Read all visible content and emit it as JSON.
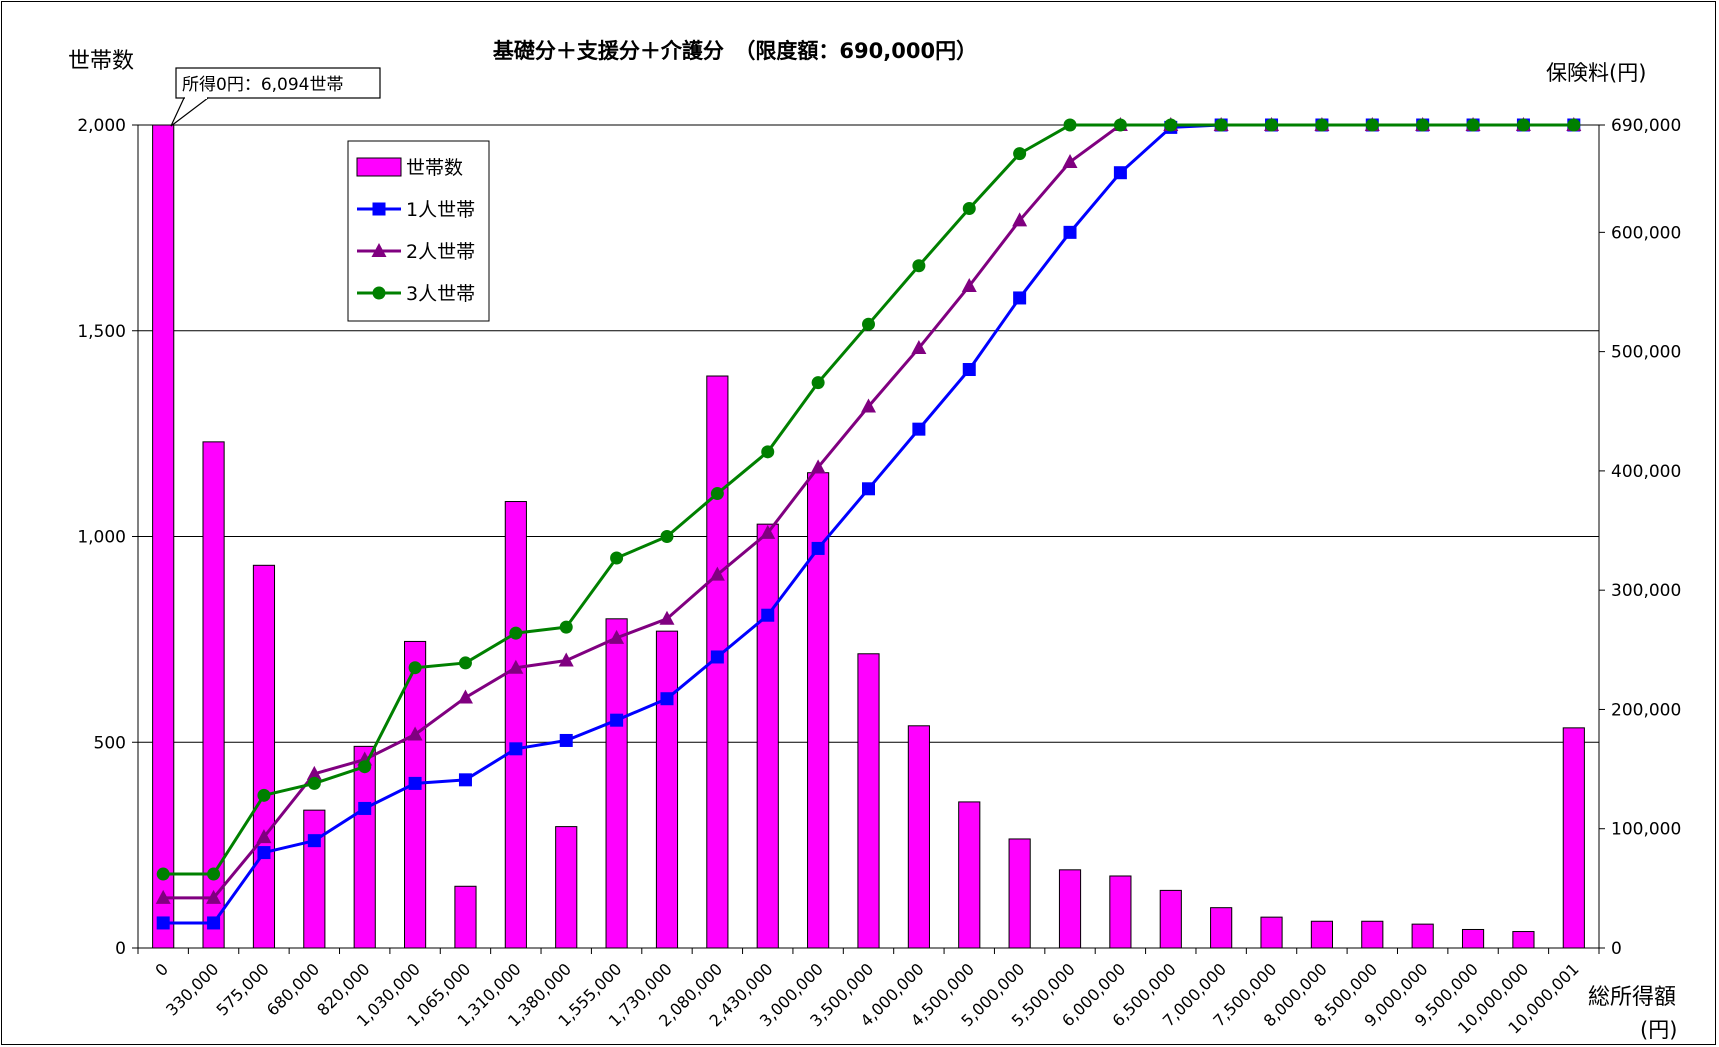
{
  "chart_data": {
    "type": "bar+line",
    "title": "基礎分＋支援分＋介護分　（限度額：690,000円）",
    "y_left_label": "世帯数",
    "y_right_label": "保険料(円)",
    "x_label_line1": "総所得額",
    "x_label_line2": "(円)",
    "annotation": "所得0円：6,094世帯",
    "categories": [
      "0",
      "330,000",
      "575,000",
      "680,000",
      "820,000",
      "1,030,000",
      "1,065,000",
      "1,310,000",
      "1,380,000",
      "1,555,000",
      "1,730,000",
      "2,080,000",
      "2,430,000",
      "3,000,000",
      "3,500,000",
      "4,000,000",
      "4,500,000",
      "5,000,000",
      "5,500,000",
      "6,000,000",
      "6,500,000",
      "7,000,000",
      "7,500,000",
      "8,000,000",
      "8,500,000",
      "9,000,000",
      "9,500,000",
      "10,000,000",
      "10,000,001"
    ],
    "y_left_range": [
      0,
      2000
    ],
    "y_left_ticks": [
      "0",
      "500",
      "1,000",
      "1,500",
      "2,000"
    ],
    "y_right_range": [
      0,
      690000
    ],
    "y_right_ticks": [
      "0",
      "100,000",
      "200,000",
      "300,000",
      "400,000",
      "500,000",
      "600,000",
      "690,000"
    ],
    "grid": true,
    "legend_position": "top-left",
    "bars": {
      "name": "世帯数",
      "color": "#ff00ff",
      "values": [
        6094,
        1230,
        930,
        335,
        490,
        745,
        150,
        1085,
        295,
        800,
        770,
        1390,
        1030,
        1155,
        715,
        540,
        355,
        265,
        190,
        175,
        140,
        98,
        75,
        65,
        65,
        58,
        45,
        40,
        535
      ]
    },
    "series": [
      {
        "name": "1人世帯",
        "color": "#0000ff",
        "marker": "square",
        "values": [
          21000,
          21000,
          80000,
          90000,
          117000,
          138000,
          141000,
          167000,
          174000,
          191000,
          209000,
          244000,
          279000,
          335000,
          385000,
          435000,
          485000,
          545000,
          600000,
          650000,
          688000,
          690000,
          690000,
          690000,
          690000,
          690000,
          690000,
          690000,
          690000
        ]
      },
      {
        "name": "2人世帯",
        "color": "#800080",
        "marker": "triangle",
        "values": [
          42000,
          42000,
          93000,
          146000,
          158000,
          179000,
          210000,
          235000,
          241000,
          260000,
          276000,
          313000,
          348000,
          403000,
          454000,
          503000,
          555000,
          610000,
          659000,
          690000,
          690000,
          690000,
          690000,
          690000,
          690000,
          690000,
          690000,
          690000,
          690000
        ]
      },
      {
        "name": "3人世帯",
        "color": "#008000",
        "marker": "circle",
        "values": [
          62000,
          62000,
          128000,
          138000,
          152000,
          235000,
          239000,
          264000,
          269000,
          327000,
          345000,
          381000,
          416000,
          474000,
          523000,
          572000,
          620000,
          666000,
          690000,
          690000,
          690000,
          690000,
          690000,
          690000,
          690000,
          690000,
          690000,
          690000,
          690000
        ]
      }
    ]
  }
}
